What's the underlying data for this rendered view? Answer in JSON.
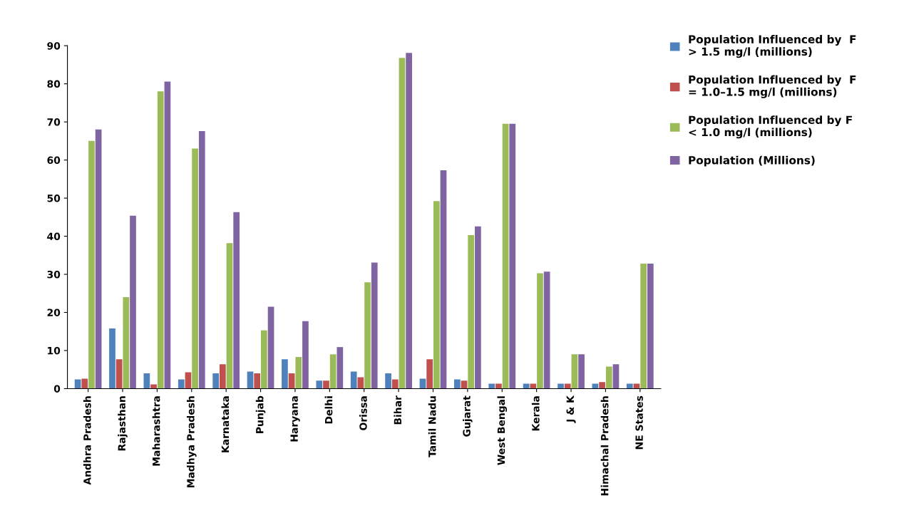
{
  "chart_data": {
    "type": "bar",
    "categories": [
      "Andhra Pradesh",
      "Rajasthan",
      "Maharashtra",
      "Madhya Pradesh",
      "Karnataka",
      "Punjab",
      "Haryana",
      "Delhi",
      "Orissa",
      "Bihar",
      "Tamil Nadu",
      "Gujarat",
      "West Bengal",
      "Kerala",
      "J & K",
      "Himachal Pradesh",
      "NE States"
    ],
    "series": [
      {
        "name": "Population Influenced by  F\n> 1.5 mg/l (millions)",
        "color": "#4f81bd",
        "values": [
          2.4,
          15.8,
          4.0,
          2.4,
          4.0,
          4.5,
          7.7,
          2.1,
          4.5,
          4.0,
          2.6,
          2.4,
          1.3,
          1.3,
          1.3,
          1.3,
          1.3
        ]
      },
      {
        "name": "Population Influenced by  F\n= 1.0–1.5 mg/l (millions)",
        "color": "#c0504d",
        "values": [
          2.6,
          7.7,
          1.1,
          4.3,
          6.4,
          4.0,
          4.0,
          2.1,
          3.0,
          2.4,
          7.7,
          2.1,
          1.3,
          1.3,
          1.3,
          1.7,
          1.3
        ]
      },
      {
        "name": "Population Influenced by F\n< 1.0 mg/l (millions)",
        "color": "#9bbb59",
        "values": [
          65,
          24,
          78,
          63,
          38.2,
          15.3,
          8.3,
          9.0,
          27.9,
          86.8,
          49.2,
          40.3,
          69.5,
          30.3,
          9.0,
          5.8,
          32.8
        ]
      },
      {
        "name": "Population (Millions)",
        "color": "#8064a2",
        "values": [
          68,
          45.4,
          80.6,
          67.6,
          46.3,
          21.5,
          17.7,
          10.9,
          33.1,
          88.1,
          57.3,
          42.6,
          69.5,
          30.7,
          9.0,
          6.4,
          32.8
        ]
      }
    ],
    "ylim": [
      0,
      90
    ],
    "yticks": [
      0,
      10,
      20,
      30,
      40,
      50,
      60,
      70,
      80,
      90
    ],
    "grid": false,
    "legend": "top right"
  }
}
